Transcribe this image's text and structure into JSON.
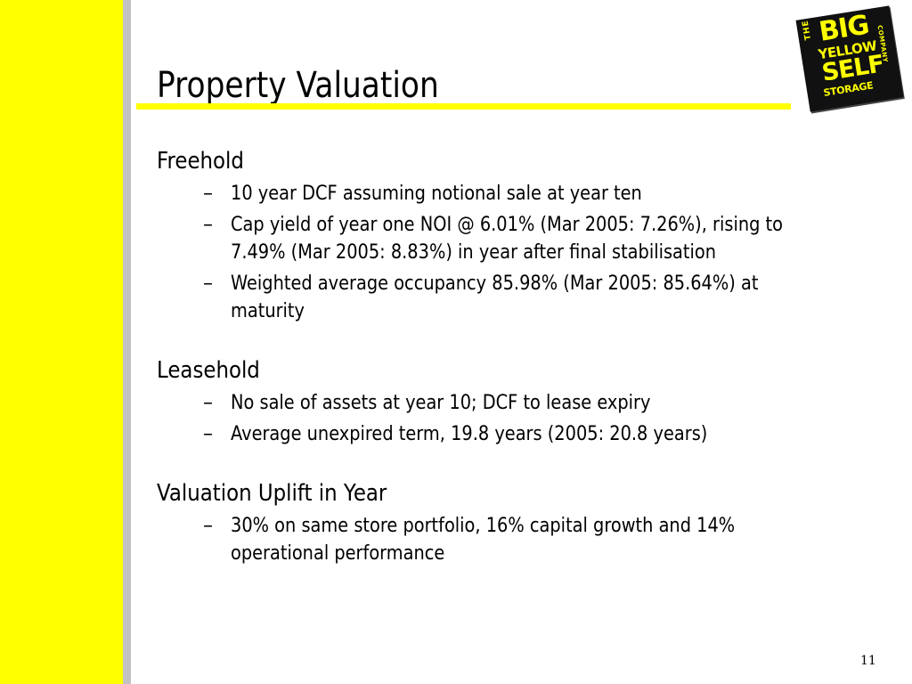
{
  "slide": {
    "title": "Property Valuation",
    "page_number": "11",
    "logo": {
      "the": "THE",
      "big": "BIG",
      "yellow": "YELLOW",
      "self": "SELF",
      "storage": "STORAGE",
      "company": "COMPANY"
    },
    "sections": [
      {
        "heading": "Freehold",
        "bullets": [
          "10 year DCF assuming notional sale at year ten",
          "Cap yield of year one NOI @ 6.01% (Mar 2005: 7.26%), rising to 7.49% (Mar 2005: 8.83%) in year after final stabilisation",
          "Weighted average occupancy 85.98% (Mar 2005: 85.64%) at maturity"
        ]
      },
      {
        "heading": "Leasehold",
        "bullets": [
          "No sale of assets at year 10; DCF to lease expiry",
          "Average unexpired term, 19.8 years (2005: 20.8 years)"
        ]
      },
      {
        "heading": "Valuation Uplift in Year",
        "bullets": [
          "30% on same store portfolio, 16% capital growth and 14% operational performance"
        ]
      }
    ],
    "dash_glyph": "–",
    "colors": {
      "band": "#ffff00",
      "band_shadow": "#c2c2c2",
      "logo_bg": "#111111",
      "logo_text": "#ffff00"
    }
  }
}
